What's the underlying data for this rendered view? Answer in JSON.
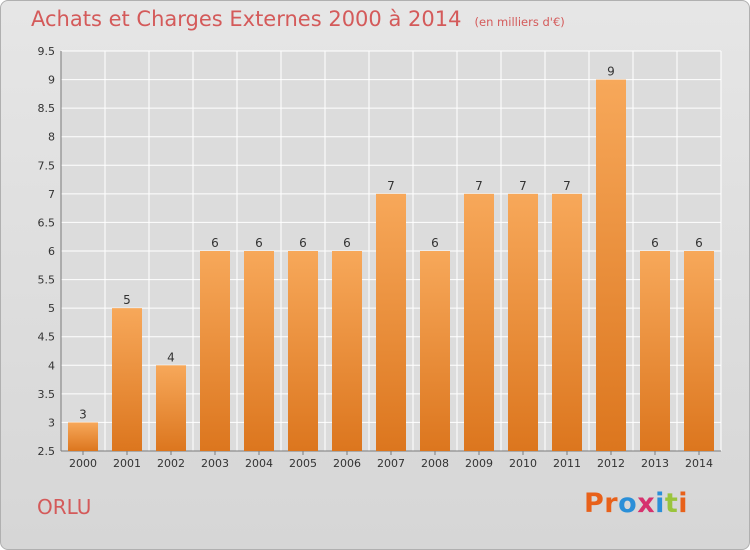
{
  "header": {
    "title": "Achats et Charges Externes 2000 à 2014",
    "unit": "(en milliers d'€)"
  },
  "footer": {
    "commune": "ORLU",
    "brand": "Proxiti",
    "brand_colors": [
      "#e8611a",
      "#e8611a",
      "#2a8fd8",
      "#d6326e",
      "#2a8fd8",
      "#9ac43c",
      "#e8611a"
    ]
  },
  "colors": {
    "bar_light": "#f7a85a",
    "bar_dark": "#dc761e",
    "grid": "#ffffff",
    "axis_text": "#333333",
    "title": "#d45a5a"
  },
  "chart_data": {
    "type": "bar",
    "categories": [
      "2000",
      "2001",
      "2002",
      "2003",
      "2004",
      "2005",
      "2006",
      "2007",
      "2008",
      "2009",
      "2010",
      "2011",
      "2012",
      "2013",
      "2014"
    ],
    "values": [
      3,
      5,
      4,
      6,
      6,
      6,
      6,
      7,
      6,
      7,
      7,
      7,
      9,
      6,
      6
    ],
    "data_labels": [
      "3",
      "5",
      "4",
      "6",
      "6",
      "6",
      "6",
      "7",
      "6",
      "7",
      "7",
      "7",
      "9",
      "6",
      "6"
    ],
    "ylim": [
      2.5,
      9.5
    ],
    "yticks": [
      2.5,
      3,
      3.5,
      4,
      4.5,
      5,
      5.5,
      6,
      6.5,
      7,
      7.5,
      8,
      8.5,
      9,
      9.5
    ],
    "ytick_labels": [
      "2.5",
      "3",
      "3.5",
      "4",
      "4.5",
      "5",
      "5.5",
      "6",
      "6.5",
      "7",
      "7.5",
      "8",
      "8.5",
      "9",
      "9.5"
    ],
    "grid": true,
    "xlabel": "",
    "ylabel": ""
  }
}
